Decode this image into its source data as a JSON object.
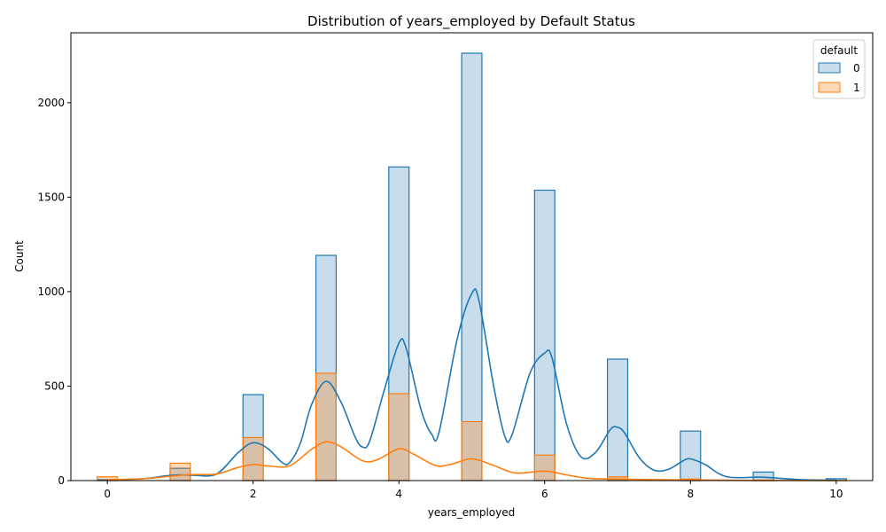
{
  "chart_data": {
    "type": "bar",
    "title": "Distribution of years_employed by Default Status",
    "xlabel": "years_employed",
    "ylabel": "Count",
    "xlim": [
      -0.5,
      10.5
    ],
    "ylim": [
      0,
      2370
    ],
    "x_ticks": [
      0,
      2,
      4,
      6,
      8,
      10
    ],
    "y_ticks": [
      0,
      500,
      1000,
      1500,
      2000
    ],
    "bin_width": 0.2778,
    "legend": {
      "title": "default",
      "position": "top-right"
    },
    "series": [
      {
        "name": "0",
        "color": "#1f77b4",
        "fill": "rgba(31,119,180,0.25)",
        "bins": [
          {
            "x": 0,
            "count": 5
          },
          {
            "x": 1,
            "count": 65
          },
          {
            "x": 2,
            "count": 455
          },
          {
            "x": 3,
            "count": 1192
          },
          {
            "x": 4,
            "count": 1660
          },
          {
            "x": 5,
            "count": 2262
          },
          {
            "x": 6,
            "count": 1537
          },
          {
            "x": 7,
            "count": 643
          },
          {
            "x": 8,
            "count": 262
          },
          {
            "x": 9,
            "count": 45
          },
          {
            "x": 10,
            "count": 10
          }
        ],
        "kde": [
          [
            0,
            3
          ],
          [
            0.5,
            10
          ],
          [
            0.8,
            25
          ],
          [
            1.0,
            30
          ],
          [
            1.2,
            28
          ],
          [
            1.5,
            35
          ],
          [
            1.8,
            150
          ],
          [
            2.0,
            200
          ],
          [
            2.2,
            170
          ],
          [
            2.4,
            95
          ],
          [
            2.5,
            95
          ],
          [
            2.65,
            200
          ],
          [
            2.8,
            400
          ],
          [
            3.0,
            525
          ],
          [
            3.2,
            420
          ],
          [
            3.4,
            230
          ],
          [
            3.5,
            178
          ],
          [
            3.6,
            210
          ],
          [
            3.8,
            480
          ],
          [
            4.0,
            728
          ],
          [
            4.1,
            700
          ],
          [
            4.3,
            380
          ],
          [
            4.45,
            245
          ],
          [
            4.55,
            255
          ],
          [
            4.8,
            750
          ],
          [
            5.0,
            990
          ],
          [
            5.1,
            950
          ],
          [
            5.3,
            500
          ],
          [
            5.45,
            238
          ],
          [
            5.55,
            240
          ],
          [
            5.8,
            570
          ],
          [
            6.0,
            675
          ],
          [
            6.1,
            650
          ],
          [
            6.3,
            300
          ],
          [
            6.5,
            125
          ],
          [
            6.7,
            150
          ],
          [
            6.9,
            270
          ],
          [
            7.0,
            282
          ],
          [
            7.1,
            250
          ],
          [
            7.3,
            120
          ],
          [
            7.5,
            55
          ],
          [
            7.7,
            60
          ],
          [
            7.9,
            105
          ],
          [
            8.0,
            115
          ],
          [
            8.2,
            85
          ],
          [
            8.5,
            20
          ],
          [
            9.0,
            18
          ],
          [
            9.5,
            5
          ],
          [
            10.0,
            2
          ]
        ]
      },
      {
        "name": "1",
        "color": "#ff7f0e",
        "fill": "rgba(255,127,14,0.3)",
        "bins": [
          {
            "x": 0,
            "count": 20
          },
          {
            "x": 1,
            "count": 92
          },
          {
            "x": 2,
            "count": 228
          },
          {
            "x": 3,
            "count": 568
          },
          {
            "x": 4,
            "count": 460
          },
          {
            "x": 5,
            "count": 312
          },
          {
            "x": 6,
            "count": 135
          },
          {
            "x": 7,
            "count": 20
          },
          {
            "x": 8,
            "count": 8
          },
          {
            "x": 9,
            "count": 3
          },
          {
            "x": 10,
            "count": 1
          }
        ],
        "kde": [
          [
            0,
            5
          ],
          [
            0.5,
            10
          ],
          [
            1.0,
            28
          ],
          [
            1.2,
            32
          ],
          [
            1.5,
            35
          ],
          [
            1.8,
            70
          ],
          [
            2.0,
            85
          ],
          [
            2.2,
            78
          ],
          [
            2.5,
            78
          ],
          [
            2.8,
            165
          ],
          [
            3.0,
            205
          ],
          [
            3.2,
            180
          ],
          [
            3.5,
            105
          ],
          [
            3.7,
            110
          ],
          [
            4.0,
            168
          ],
          [
            4.2,
            140
          ],
          [
            4.5,
            80
          ],
          [
            4.7,
            85
          ],
          [
            5.0,
            115
          ],
          [
            5.3,
            80
          ],
          [
            5.6,
            40
          ],
          [
            6.0,
            50
          ],
          [
            6.3,
            30
          ],
          [
            6.6,
            12
          ],
          [
            7.0,
            8
          ],
          [
            7.5,
            5
          ],
          [
            8.0,
            3
          ],
          [
            9.0,
            1
          ],
          [
            10.0,
            0
          ]
        ]
      }
    ]
  }
}
